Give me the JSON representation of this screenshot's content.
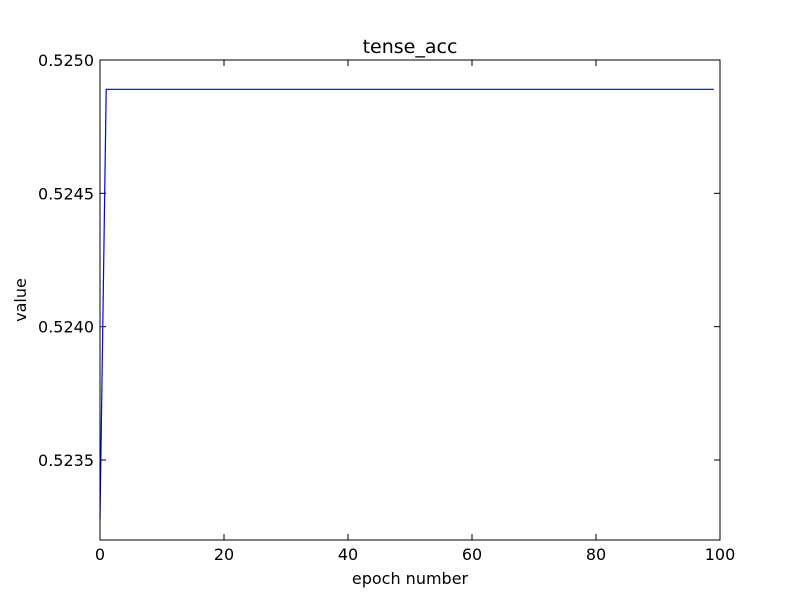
{
  "chart_data": {
    "type": "line",
    "title": "tense_acc",
    "xlabel": "epoch number",
    "ylabel": "value",
    "xlim": [
      0,
      100
    ],
    "ylim": [
      0.5232,
      0.525
    ],
    "xticks": [
      0,
      20,
      40,
      60,
      80,
      100
    ],
    "xtick_labels": [
      "0",
      "20",
      "40",
      "60",
      "80",
      "100"
    ],
    "yticks": [
      0.5235,
      0.524,
      0.5245,
      0.525
    ],
    "ytick_labels": [
      "0.5235",
      "0.5240",
      "0.5245",
      "0.5250"
    ],
    "grid": false,
    "series": [
      {
        "color": "#0000ff",
        "x": [
          0,
          1,
          99
        ],
        "y": [
          0.52328,
          0.52489,
          0.52489
        ]
      }
    ]
  }
}
